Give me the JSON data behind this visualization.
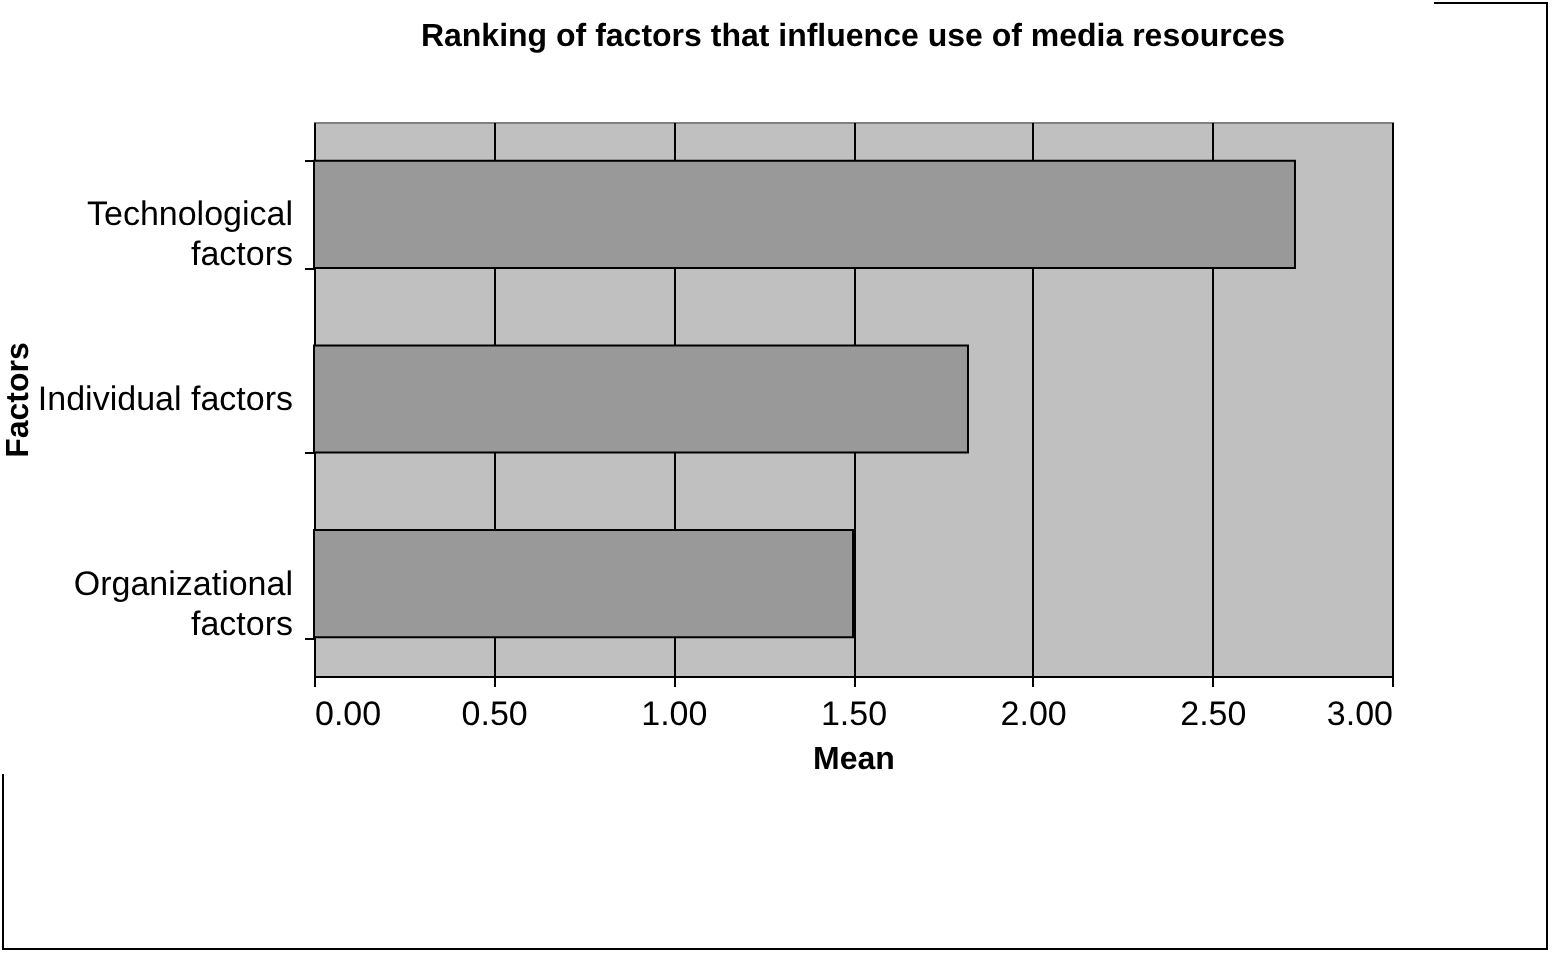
{
  "chart_data": {
    "type": "bar",
    "orientation": "horizontal",
    "title": "Ranking of factors that influence use  of media resources",
    "xlabel": "Mean",
    "ylabel": "Factors",
    "categories": [
      "Technological factors",
      "Individual factors",
      "Organizational factors"
    ],
    "values": [
      2.73,
      1.82,
      1.5
    ],
    "color": "#999999",
    "xlim": [
      0,
      3
    ],
    "xticks": [
      {
        "value": 0,
        "label": "0.00"
      },
      {
        "value": 0.5,
        "label": "0.50"
      },
      {
        "value": 1,
        "label": "1.00"
      },
      {
        "value": 1.5,
        "label": "1.50"
      },
      {
        "value": 2,
        "label": "2.00"
      },
      {
        "value": 2.5,
        "label": "2.50"
      },
      {
        "value": 3,
        "label": "3.00"
      }
    ],
    "grid": "x"
  }
}
